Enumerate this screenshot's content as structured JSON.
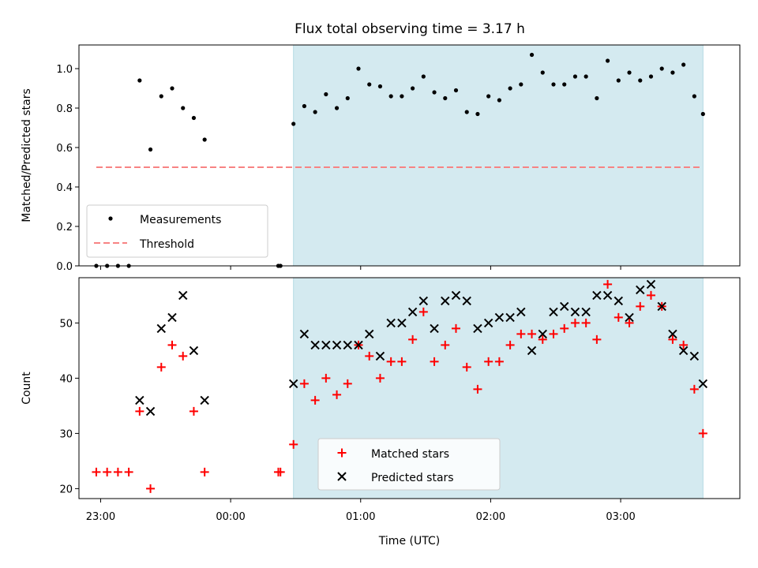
{
  "chart_data": [
    {
      "type": "scatter",
      "title": "Flux total observing time = 3.17 h",
      "xlabel": "",
      "ylabel": "Matched/Predicted stars",
      "xlim": [
        "22:50",
        "03:55"
      ],
      "ylim": [
        0,
        1.12
      ],
      "yticks": [
        "0.0",
        "0.2",
        "0.4",
        "0.6",
        "0.8",
        "1.0"
      ],
      "shaded_region": {
        "start": "00:29",
        "end": "03:38",
        "color": "#d4eaf0"
      },
      "threshold": {
        "name": "Threshold",
        "value": 0.5,
        "start": "22:58",
        "end": "03:37",
        "color": "#f78383"
      },
      "series": [
        {
          "name": "Measurements",
          "color": "#000000",
          "points": [
            [
              "22:58",
              0.0
            ],
            [
              "23:03",
              0.0
            ],
            [
              "23:08",
              0.0
            ],
            [
              "23:13",
              0.0
            ],
            [
              "23:18",
              0.94
            ],
            [
              "23:23",
              0.59
            ],
            [
              "23:28",
              0.86
            ],
            [
              "23:33",
              0.9
            ],
            [
              "23:38",
              0.8
            ],
            [
              "23:43",
              0.75
            ],
            [
              "23:48",
              0.64
            ],
            [
              "00:22",
              0.0
            ],
            [
              "00:23",
              0.0
            ],
            [
              "00:29",
              0.72
            ],
            [
              "00:34",
              0.81
            ],
            [
              "00:39",
              0.78
            ],
            [
              "00:44",
              0.87
            ],
            [
              "00:49",
              0.8
            ],
            [
              "00:54",
              0.85
            ],
            [
              "00:59",
              1.0
            ],
            [
              "01:04",
              0.92
            ],
            [
              "01:09",
              0.91
            ],
            [
              "01:14",
              0.86
            ],
            [
              "01:19",
              0.86
            ],
            [
              "01:24",
              0.9
            ],
            [
              "01:29",
              0.96
            ],
            [
              "01:34",
              0.88
            ],
            [
              "01:39",
              0.85
            ],
            [
              "01:44",
              0.89
            ],
            [
              "01:49",
              0.78
            ],
            [
              "01:54",
              0.77
            ],
            [
              "01:59",
              0.86
            ],
            [
              "02:04",
              0.84
            ],
            [
              "02:09",
              0.9
            ],
            [
              "02:14",
              0.92
            ],
            [
              "02:19",
              1.07
            ],
            [
              "02:24",
              0.98
            ],
            [
              "02:29",
              0.92
            ],
            [
              "02:34",
              0.92
            ],
            [
              "02:39",
              0.96
            ],
            [
              "02:44",
              0.96
            ],
            [
              "02:49",
              0.85
            ],
            [
              "02:54",
              1.04
            ],
            [
              "02:59",
              0.94
            ],
            [
              "03:04",
              0.98
            ],
            [
              "03:09",
              0.94
            ],
            [
              "03:14",
              0.96
            ],
            [
              "03:19",
              1.0
            ],
            [
              "03:24",
              0.98
            ],
            [
              "03:29",
              1.02
            ],
            [
              "03:34",
              0.86
            ],
            [
              "03:38",
              0.77
            ]
          ]
        }
      ],
      "legend": {
        "position": "lower-left",
        "entries": [
          "Measurements",
          "Threshold"
        ]
      }
    },
    {
      "type": "scatter",
      "title": "",
      "xlabel": "Time (UTC)",
      "ylabel": "Count",
      "xlim": [
        "22:50",
        "03:55"
      ],
      "ylim": [
        18.2,
        58.2
      ],
      "xticks": [
        "23:00",
        "00:00",
        "01:00",
        "02:00",
        "03:00"
      ],
      "yticks": [
        "20",
        "30",
        "40",
        "50"
      ],
      "shaded_region": {
        "start": "00:29",
        "end": "03:38",
        "color": "#d4eaf0"
      },
      "series": [
        {
          "name": "Matched stars",
          "marker": "plus",
          "color": "#ff0000",
          "points": [
            [
              "22:58",
              23
            ],
            [
              "23:03",
              23
            ],
            [
              "23:08",
              23
            ],
            [
              "23:13",
              23
            ],
            [
              "23:18",
              34
            ],
            [
              "23:23",
              20
            ],
            [
              "23:28",
              42
            ],
            [
              "23:33",
              46
            ],
            [
              "23:38",
              44
            ],
            [
              "23:43",
              34
            ],
            [
              "23:48",
              23
            ],
            [
              "00:22",
              23
            ],
            [
              "00:23",
              23
            ],
            [
              "00:29",
              28
            ],
            [
              "00:34",
              39
            ],
            [
              "00:39",
              36
            ],
            [
              "00:44",
              40
            ],
            [
              "00:49",
              37
            ],
            [
              "00:54",
              39
            ],
            [
              "00:59",
              46
            ],
            [
              "01:04",
              44
            ],
            [
              "01:09",
              40
            ],
            [
              "01:14",
              43
            ],
            [
              "01:19",
              43
            ],
            [
              "01:24",
              47
            ],
            [
              "01:29",
              52
            ],
            [
              "01:34",
              43
            ],
            [
              "01:39",
              46
            ],
            [
              "01:44",
              49
            ],
            [
              "01:49",
              42
            ],
            [
              "01:54",
              38
            ],
            [
              "01:59",
              43
            ],
            [
              "02:04",
              43
            ],
            [
              "02:09",
              46
            ],
            [
              "02:14",
              48
            ],
            [
              "02:19",
              48
            ],
            [
              "02:24",
              47
            ],
            [
              "02:29",
              48
            ],
            [
              "02:34",
              49
            ],
            [
              "02:39",
              50
            ],
            [
              "02:44",
              50
            ],
            [
              "02:49",
              47
            ],
            [
              "02:54",
              57
            ],
            [
              "02:59",
              51
            ],
            [
              "03:04",
              50
            ],
            [
              "03:09",
              53
            ],
            [
              "03:14",
              55
            ],
            [
              "03:19",
              53
            ],
            [
              "03:24",
              47
            ],
            [
              "03:29",
              46
            ],
            [
              "03:34",
              38
            ],
            [
              "03:38",
              30
            ]
          ]
        },
        {
          "name": "Predicted stars",
          "marker": "x",
          "color": "#000000",
          "points": [
            [
              "23:18",
              36
            ],
            [
              "23:23",
              34
            ],
            [
              "23:28",
              49
            ],
            [
              "23:33",
              51
            ],
            [
              "23:38",
              55
            ],
            [
              "23:43",
              45
            ],
            [
              "23:48",
              36
            ],
            [
              "00:29",
              39
            ],
            [
              "00:34",
              48
            ],
            [
              "00:39",
              46
            ],
            [
              "00:44",
              46
            ],
            [
              "00:49",
              46
            ],
            [
              "00:54",
              46
            ],
            [
              "00:59",
              46
            ],
            [
              "01:04",
              48
            ],
            [
              "01:09",
              44
            ],
            [
              "01:14",
              50
            ],
            [
              "01:19",
              50
            ],
            [
              "01:24",
              52
            ],
            [
              "01:29",
              54
            ],
            [
              "01:34",
              49
            ],
            [
              "01:39",
              54
            ],
            [
              "01:44",
              55
            ],
            [
              "01:49",
              54
            ],
            [
              "01:54",
              49
            ],
            [
              "01:59",
              50
            ],
            [
              "02:04",
              51
            ],
            [
              "02:09",
              51
            ],
            [
              "02:14",
              52
            ],
            [
              "02:19",
              45
            ],
            [
              "02:24",
              48
            ],
            [
              "02:29",
              52
            ],
            [
              "02:34",
              53
            ],
            [
              "02:39",
              52
            ],
            [
              "02:44",
              52
            ],
            [
              "02:49",
              55
            ],
            [
              "02:54",
              55
            ],
            [
              "02:59",
              54
            ],
            [
              "03:04",
              51
            ],
            [
              "03:09",
              56
            ],
            [
              "03:14",
              57
            ],
            [
              "03:19",
              53
            ],
            [
              "03:24",
              48
            ],
            [
              "03:29",
              45
            ],
            [
              "03:34",
              44
            ],
            [
              "03:38",
              39
            ]
          ]
        }
      ],
      "legend": {
        "position": "lower-center",
        "entries": [
          "Matched stars",
          "Predicted stars"
        ]
      }
    }
  ]
}
